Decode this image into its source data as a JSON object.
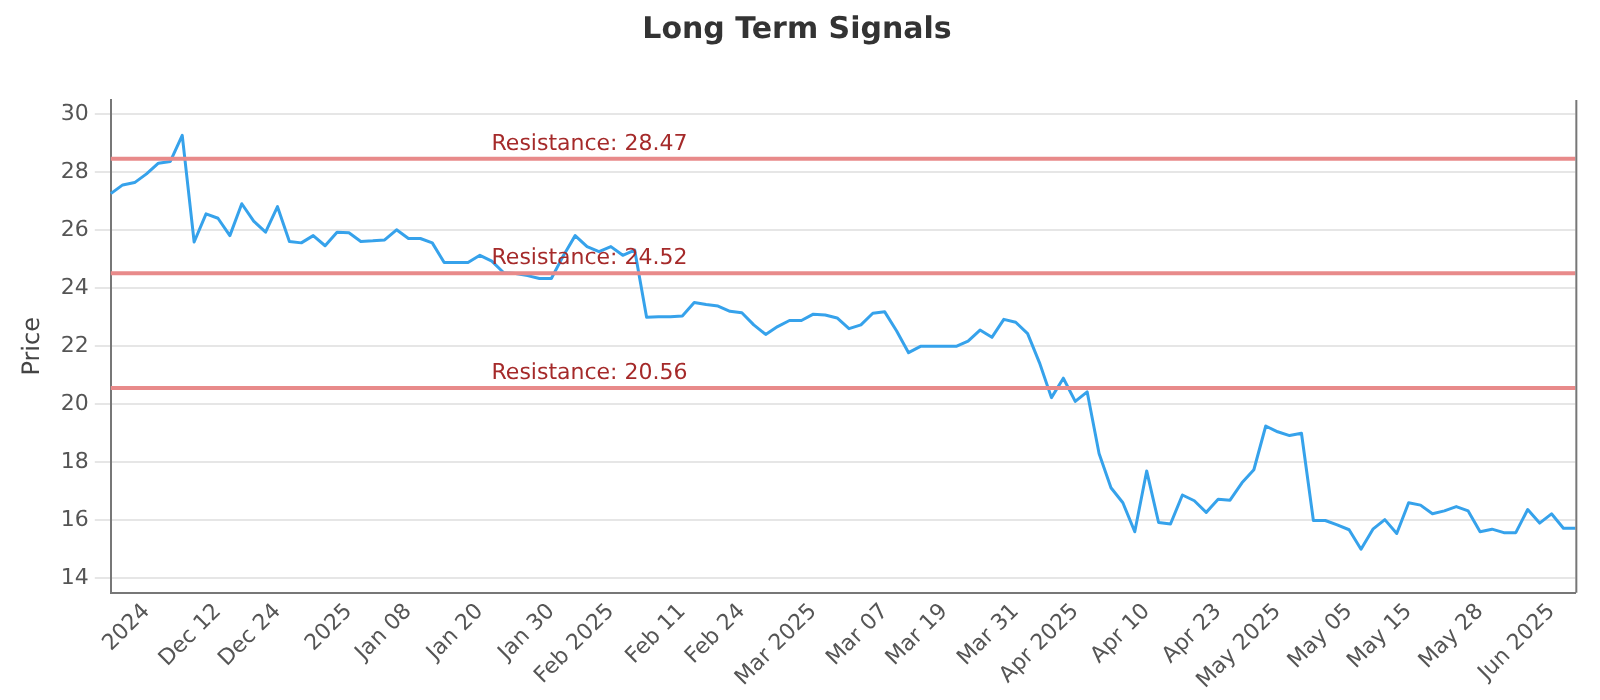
{
  "chart_data": {
    "type": "line",
    "title": "Long Term Signals",
    "ylabel": "Price",
    "categories": [
      null,
      null,
      null,
      "2024",
      null,
      null,
      null,
      null,
      null,
      "Dec 12",
      null,
      null,
      null,
      null,
      "Dec 24",
      null,
      null,
      null,
      null,
      null,
      "2025",
      null,
      null,
      null,
      null,
      "Jan 08",
      null,
      null,
      null,
      null,
      null,
      "Jan 20",
      null,
      null,
      null,
      null,
      null,
      "Jan 30",
      null,
      null,
      null,
      null,
      "Feb 2025",
      null,
      null,
      null,
      null,
      null,
      "Feb 11",
      null,
      null,
      null,
      null,
      "Feb 24",
      null,
      null,
      null,
      null,
      null,
      "Mar 2025",
      null,
      null,
      null,
      null,
      null,
      "Mar 07",
      null,
      null,
      null,
      null,
      "Mar 19",
      null,
      null,
      null,
      null,
      null,
      "Mar 31",
      null,
      null,
      null,
      null,
      "Apr 2025",
      null,
      null,
      null,
      null,
      null,
      "Apr 10",
      null,
      null,
      null,
      null,
      null,
      "Apr 23",
      null,
      null,
      null,
      null,
      "May 2025",
      null,
      null,
      null,
      null,
      null,
      "May 05",
      null,
      null,
      null,
      null,
      "May 15",
      null,
      null,
      null,
      null,
      null,
      "May 28",
      null,
      null,
      null,
      null,
      null,
      "Jun 2025",
      null,
      null
    ],
    "series": [
      {
        "color": "#36a2eb",
        "values": [
          27.27,
          27.57,
          27.65,
          27.95,
          28.32,
          28.38,
          29.28,
          25.6,
          26.57,
          26.42,
          25.82,
          26.92,
          26.32,
          25.94,
          26.82,
          25.62,
          25.57,
          25.82,
          25.47,
          25.94,
          25.92,
          25.62,
          25.64,
          25.67,
          26.02,
          25.72,
          25.72,
          25.57,
          24.89,
          24.89,
          24.89,
          25.14,
          24.94,
          24.54,
          24.51,
          24.44,
          24.34,
          24.34,
          25.12,
          25.82,
          25.44,
          25.27,
          25.44,
          25.14,
          25.32,
          23.0,
          23.02,
          23.02,
          23.05,
          23.51,
          23.44,
          23.39,
          23.21,
          23.16,
          22.74,
          22.41,
          22.68,
          22.89,
          22.89,
          23.11,
          23.08,
          22.98,
          22.61,
          22.74,
          23.14,
          23.19,
          22.53,
          21.78,
          22.0,
          22.0,
          22.0,
          22.0,
          22.18,
          22.56,
          22.31,
          22.93,
          22.83,
          22.44,
          21.43,
          20.23,
          20.9,
          20.1,
          20.43,
          18.3,
          17.12,
          16.6,
          15.6,
          17.7,
          15.92,
          15.87,
          16.87,
          16.67,
          16.27,
          16.72,
          16.69,
          17.29,
          17.74,
          19.25,
          19.05,
          18.92,
          19.0,
          15.99,
          15.99,
          15.84,
          15.67,
          15.0,
          15.69,
          16.02,
          15.54,
          16.6,
          16.52,
          16.22,
          16.32,
          16.47,
          16.32,
          15.6,
          15.69,
          15.57,
          15.57,
          16.37,
          15.9,
          16.22,
          15.72,
          15.72
        ]
      }
    ],
    "ylim": [
      13.5,
      30.5
    ],
    "yticks": [
      14,
      16,
      18,
      20,
      22,
      24,
      26,
      28,
      30
    ],
    "grid": "y",
    "legend": false,
    "marker": "none",
    "line_style": "solid",
    "ref_lines": [
      {
        "axis": "y",
        "value": 28.47,
        "label": "Resistance: 28.47",
        "color": "#e88a8a"
      },
      {
        "axis": "y",
        "value": 24.52,
        "label": "Resistance: 24.52",
        "color": "#e88a8a"
      },
      {
        "axis": "y",
        "value": 20.56,
        "label": "Resistance: 20.56",
        "color": "#e88a8a"
      }
    ]
  }
}
